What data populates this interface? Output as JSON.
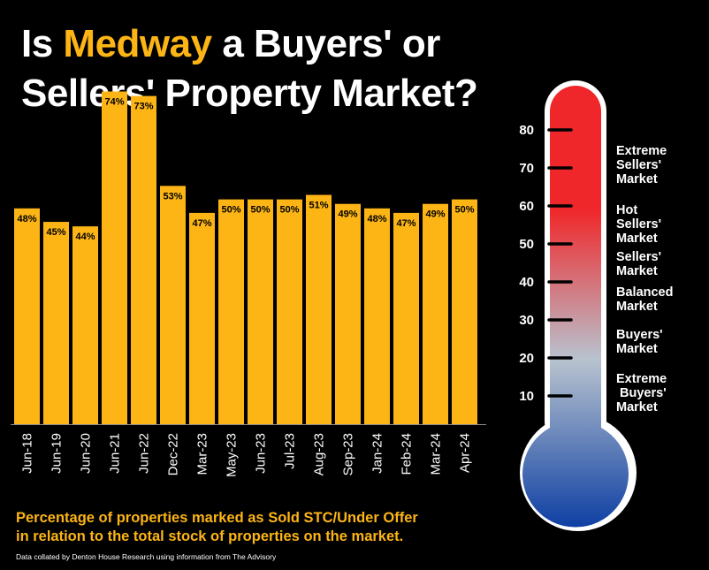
{
  "title": {
    "part1": "Is ",
    "accent": "Medway",
    "part2": " a Buyers' or",
    "line2": "Sellers' Property Market?"
  },
  "caption": {
    "line1": "Percentage of properties marked as Sold STC/Under Offer",
    "line2": "in relation to the total stock of properties on the market."
  },
  "credit": "Data collated by Denton House Research using information from The Advisory",
  "colors": {
    "bar": "#FDB515",
    "accent": "#FDB515",
    "background": "#000000",
    "axis": "#8c8c8c"
  },
  "chart_data": {
    "type": "bar",
    "categories": [
      "Jun-18",
      "Jun-19",
      "Jun-20",
      "Jun-21",
      "Jun-22",
      "Dec-22",
      "Mar-23",
      "May-23",
      "Jun-23",
      "Jul-23",
      "Aug-23",
      "Sep-23",
      "Jan-24",
      "Feb-24",
      "Mar-24",
      "Apr-24"
    ],
    "values": [
      48,
      45,
      44,
      74,
      73,
      53,
      47,
      50,
      50,
      50,
      51,
      49,
      48,
      47,
      49,
      50
    ],
    "data_labels": [
      "48%",
      "45%",
      "44%",
      "74%",
      "73%",
      "53%",
      "47%",
      "50%",
      "50%",
      "50%",
      "51%",
      "49%",
      "48%",
      "47%",
      "49%",
      "50%"
    ],
    "ylim": [
      0,
      80
    ],
    "grid": false,
    "xlabel": "",
    "ylabel": ""
  },
  "thermometer": {
    "ticks": [
      "80",
      "70",
      "60",
      "50",
      "40",
      "30",
      "20",
      "10"
    ],
    "tick_values": [
      80,
      70,
      60,
      50,
      40,
      30,
      20,
      10
    ],
    "colors": {
      "top": "#F0272A",
      "mid": "#B8C3CF",
      "bottom": "#0E3FA3"
    },
    "labels": [
      {
        "lines": [
          "Extreme",
          "Sellers'",
          "Market"
        ]
      },
      {
        "lines": [
          "Hot",
          "Sellers'",
          "Market"
        ]
      },
      {
        "lines": [
          "Sellers'",
          "Market"
        ]
      },
      {
        "lines": [
          "Balanced",
          "Market"
        ]
      },
      {
        "lines": [
          "Buyers'",
          "Market"
        ]
      },
      {
        "lines": [
          "Extreme",
          " Buyers'",
          "Market"
        ]
      }
    ]
  }
}
